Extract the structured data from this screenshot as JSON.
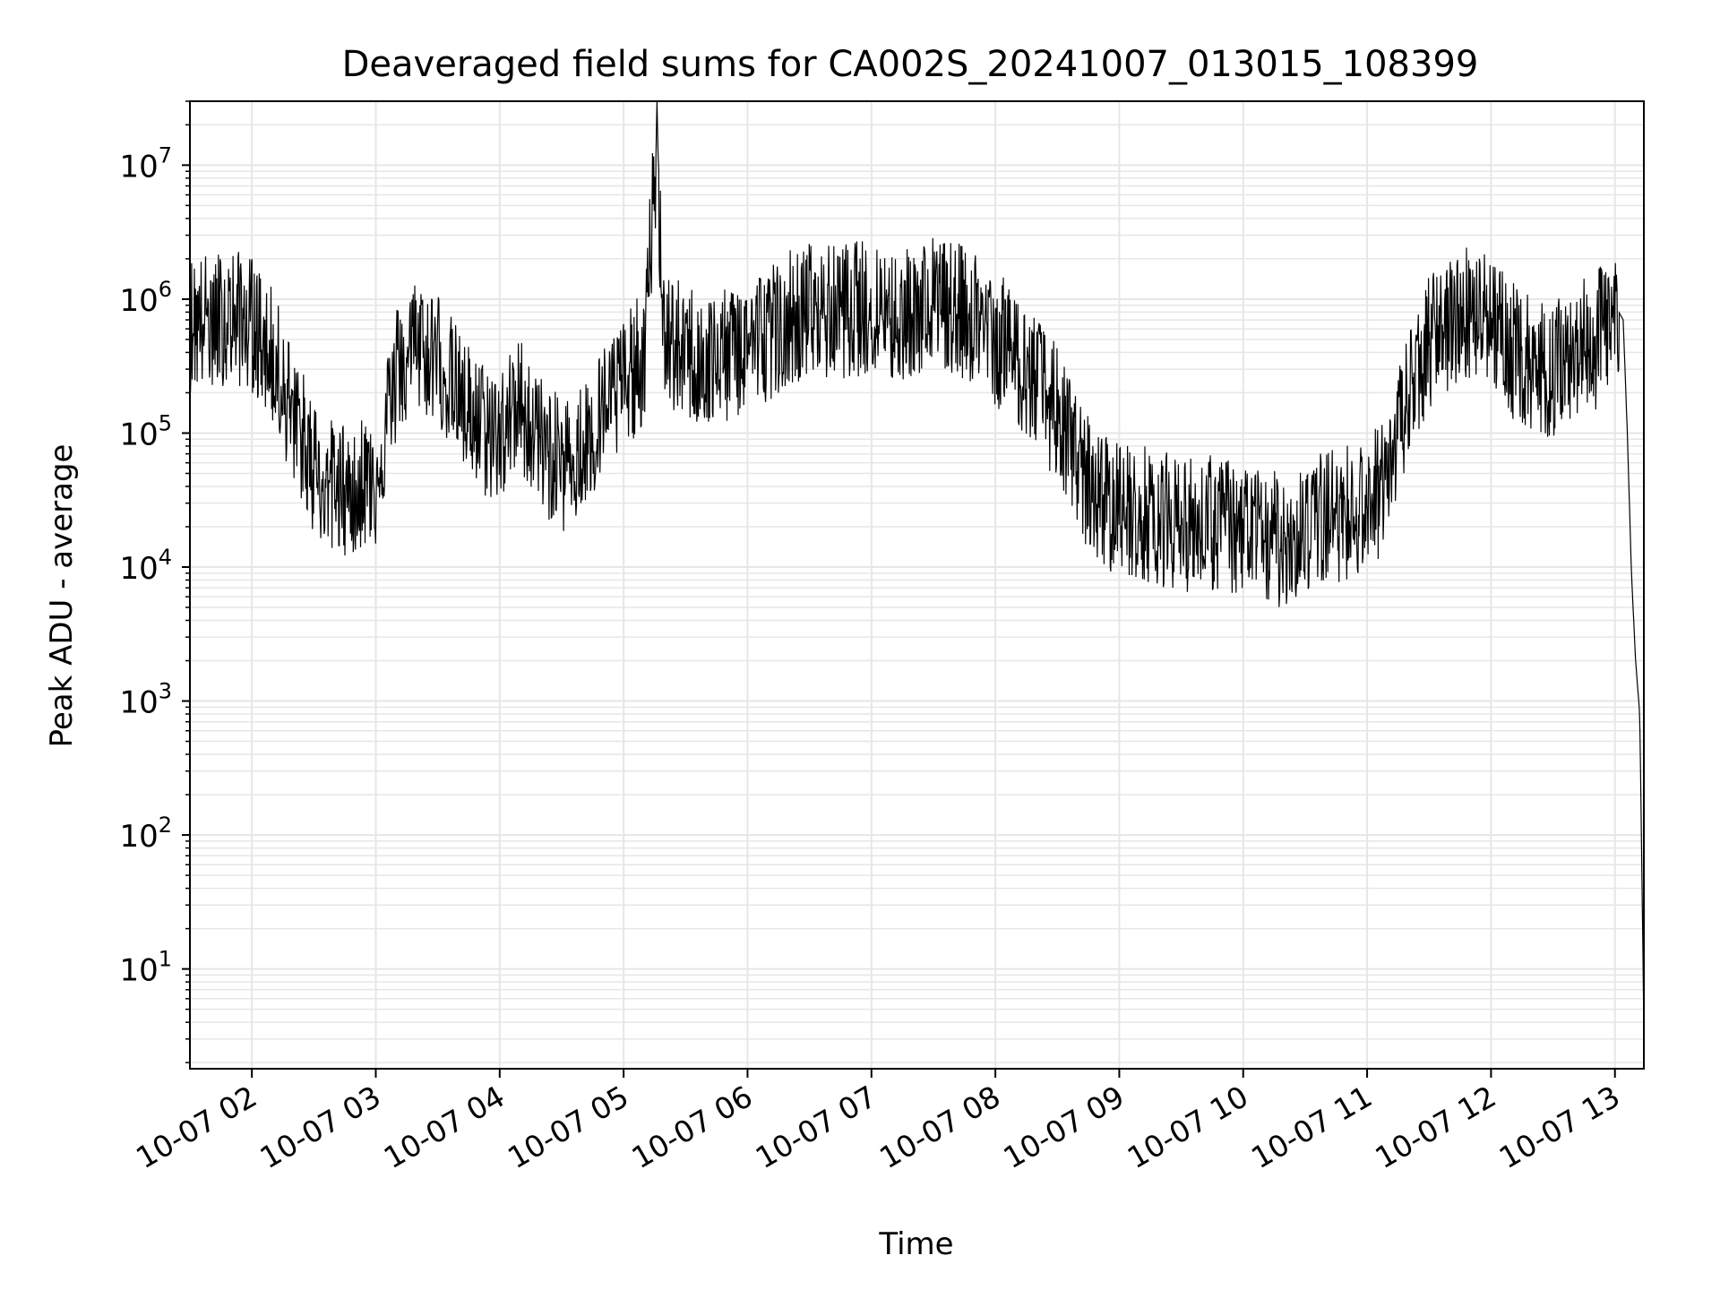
{
  "chart_data": {
    "type": "line",
    "title": "Deaveraged field sums for CA002S_20241007_013015_108399",
    "xlabel": "Time",
    "ylabel": "Peak ADU - average",
    "yscale": "log",
    "grid": true,
    "line_color": "#000000",
    "grid_color": "#e6e6e6",
    "xlim": [
      "2024-10-07 01:30",
      "2024-10-07 13:14"
    ],
    "ylim": [
      1.8,
      30000000
    ],
    "x_ticks": [
      {
        "value": "2024-10-07 02:00",
        "label": "10-07 02"
      },
      {
        "value": "2024-10-07 03:00",
        "label": "10-07 03"
      },
      {
        "value": "2024-10-07 04:00",
        "label": "10-07 04"
      },
      {
        "value": "2024-10-07 05:00",
        "label": "10-07 05"
      },
      {
        "value": "2024-10-07 06:00",
        "label": "10-07 06"
      },
      {
        "value": "2024-10-07 07:00",
        "label": "10-07 07"
      },
      {
        "value": "2024-10-07 08:00",
        "label": "10-07 08"
      },
      {
        "value": "2024-10-07 09:00",
        "label": "10-07 09"
      },
      {
        "value": "2024-10-07 10:00",
        "label": "10-07 10"
      },
      {
        "value": "2024-10-07 11:00",
        "label": "10-07 11"
      },
      {
        "value": "2024-10-07 12:00",
        "label": "10-07 12"
      },
      {
        "value": "2024-10-07 13:00",
        "label": "10-07 13"
      }
    ],
    "y_ticks": [
      {
        "value": 10,
        "base": "10",
        "exp": "1"
      },
      {
        "value": 100,
        "base": "10",
        "exp": "2"
      },
      {
        "value": 1000,
        "base": "10",
        "exp": "3"
      },
      {
        "value": 10000,
        "base": "10",
        "exp": "4"
      },
      {
        "value": 100000,
        "base": "10",
        "exp": "5"
      },
      {
        "value": 1000000,
        "base": "10",
        "exp": "6"
      },
      {
        "value": 10000000,
        "base": "10",
        "exp": "7"
      }
    ],
    "series": [
      {
        "x": [
          "2024-10-07 01:30",
          "2024-10-07 01:40",
          "2024-10-07 01:50",
          "2024-10-07 02:00",
          "2024-10-07 02:10",
          "2024-10-07 02:20",
          "2024-10-07 02:30",
          "2024-10-07 02:40",
          "2024-10-07 02:50",
          "2024-10-07 03:00",
          "2024-10-07 03:10",
          "2024-10-07 03:20",
          "2024-10-07 03:30",
          "2024-10-07 03:40",
          "2024-10-07 03:50",
          "2024-10-07 04:00",
          "2024-10-07 04:10",
          "2024-10-07 04:20",
          "2024-10-07 04:30",
          "2024-10-07 04:40",
          "2024-10-07 04:50",
          "2024-10-07 05:00",
          "2024-10-07 05:10",
          "2024-10-07 05:16",
          "2024-10-07 05:20",
          "2024-10-07 05:30",
          "2024-10-07 05:40",
          "2024-10-07 05:50",
          "2024-10-07 06:00",
          "2024-10-07 06:10",
          "2024-10-07 06:20",
          "2024-10-07 06:30",
          "2024-10-07 06:40",
          "2024-10-07 06:50",
          "2024-10-07 07:00",
          "2024-10-07 07:10",
          "2024-10-07 07:20",
          "2024-10-07 07:30",
          "2024-10-07 07:40",
          "2024-10-07 07:50",
          "2024-10-07 08:00",
          "2024-10-07 08:10",
          "2024-10-07 08:20",
          "2024-10-07 08:30",
          "2024-10-07 08:40",
          "2024-10-07 08:50",
          "2024-10-07 09:00",
          "2024-10-07 09:10",
          "2024-10-07 09:20",
          "2024-10-07 09:30",
          "2024-10-07 09:40",
          "2024-10-07 09:50",
          "2024-10-07 10:00",
          "2024-10-07 10:10",
          "2024-10-07 10:20",
          "2024-10-07 10:30",
          "2024-10-07 10:40",
          "2024-10-07 10:50",
          "2024-10-07 11:00",
          "2024-10-07 11:10",
          "2024-10-07 11:20",
          "2024-10-07 11:30",
          "2024-10-07 11:40",
          "2024-10-07 11:50",
          "2024-10-07 12:00",
          "2024-10-07 12:10",
          "2024-10-07 12:20",
          "2024-10-07 12:30",
          "2024-10-07 12:40",
          "2024-10-07 12:50",
          "2024-10-07 13:00",
          "2024-10-07 13:04",
          "2024-10-07 13:06",
          "2024-10-07 13:08",
          "2024-10-07 13:10",
          "2024-10-07 13:12",
          "2024-10-07 13:13",
          "2024-10-07 13:14"
        ],
        "y": [
          700000,
          750000,
          800000,
          700000,
          400000,
          150000,
          60000,
          40000,
          45000,
          50000,
          300000,
          500000,
          400000,
          200000,
          120000,
          100000,
          180000,
          90000,
          60000,
          80000,
          150000,
          250000,
          400000,
          14000000,
          500000,
          450000,
          350000,
          400000,
          500000,
          600000,
          800000,
          900000,
          850000,
          900000,
          950000,
          800000,
          900000,
          1000000,
          900000,
          800000,
          550000,
          400000,
          250000,
          150000,
          60000,
          35000,
          30000,
          28000,
          25000,
          22000,
          24000,
          22000,
          20000,
          18000,
          17000,
          22000,
          25000,
          28000,
          30000,
          50000,
          200000,
          500000,
          700000,
          900000,
          800000,
          450000,
          350000,
          300000,
          450000,
          500000,
          900000,
          700000,
          100000,
          9000,
          2000,
          800,
          60,
          3.5
        ],
        "noise_up": 3.0,
        "noise_down": 4.0
      }
    ]
  }
}
